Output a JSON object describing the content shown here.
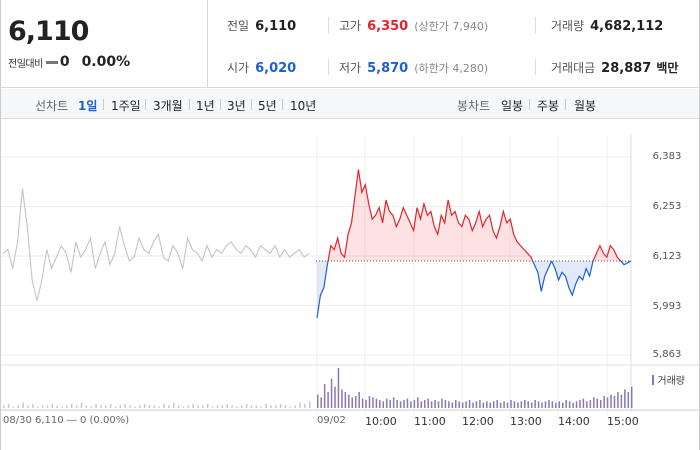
{
  "summary": {
    "current_price": "6,110",
    "change_label": "전일대비",
    "change_value": "0",
    "change_percent": "0.00%",
    "prev_close": {
      "label": "전일",
      "value": "6,110"
    },
    "high": {
      "label": "고가",
      "value": "6,350",
      "limit_label": "(상한가 7,940)"
    },
    "volume": {
      "label": "거래량",
      "value": "4,682,112"
    },
    "open": {
      "label": "시가",
      "value": "6,020"
    },
    "low": {
      "label": "저가",
      "value": "5,870",
      "limit_label": "(하한가 4,280)"
    },
    "trade_amount": {
      "label": "거래대금",
      "value": "28,887",
      "unit": "백만"
    }
  },
  "tabs": {
    "line_chart_label": "선차트",
    "line_items": [
      "1일",
      "1주일",
      "3개월",
      "1년",
      "3년",
      "5년",
      "10년"
    ],
    "active_index": 0,
    "candle_chart_label": "봉차트",
    "candle_items": [
      "일봉",
      "주봉",
      "월봉"
    ]
  },
  "chart_data": {
    "type": "line",
    "y_ticks": [
      "6,383",
      "6,253",
      "6,123",
      "5,993",
      "5,863"
    ],
    "ylim": [
      5863,
      6383
    ],
    "reference_price": 6110,
    "x_labels": [
      "09/02",
      "10:00",
      "11:00",
      "12:00",
      "13:00",
      "14:00",
      "15:00"
    ],
    "prev_day_label": "08/30  6,110 ― 0 (0.00%)",
    "volume_legend": "거래량",
    "prev_day_series": {
      "values": [
        6130,
        6140,
        6090,
        6160,
        6300,
        6200,
        6060,
        6005,
        6060,
        6140,
        6090,
        6120,
        6150,
        6130,
        6080,
        6160,
        6120,
        6140,
        6170,
        6090,
        6130,
        6160,
        6100,
        6130,
        6200,
        6150,
        6110,
        6120,
        6170,
        6140,
        6130,
        6160,
        6180,
        6120,
        6110,
        6150,
        6130,
        6090,
        6170,
        6140,
        6130,
        6110,
        6150,
        6120,
        6140,
        6130,
        6150,
        6160,
        6140,
        6130,
        6150,
        6140,
        6120,
        6150,
        6140,
        6130,
        6150,
        6120,
        6140,
        6120,
        6130,
        6140,
        6120,
        6130
      ]
    },
    "today_series": {
      "time_range": [
        "09:00",
        "15:20"
      ],
      "values": [
        5960,
        6020,
        6040,
        6100,
        6150,
        6140,
        6170,
        6130,
        6120,
        6180,
        6210,
        6280,
        6350,
        6290,
        6310,
        6260,
        6220,
        6230,
        6250,
        6210,
        6270,
        6240,
        6230,
        6200,
        6220,
        6250,
        6230,
        6210,
        6190,
        6250,
        6220,
        6260,
        6230,
        6240,
        6200,
        6180,
        6230,
        6210,
        6270,
        6230,
        6240,
        6210,
        6200,
        6230,
        6220,
        6190,
        6210,
        6240,
        6200,
        6220,
        6230,
        6190,
        6170,
        6200,
        6240,
        6210,
        6220,
        6180,
        6160,
        6150,
        6140,
        6130,
        6120,
        6100,
        6080,
        6030,
        6070,
        6090,
        6110,
        6090,
        6060,
        6080,
        6070,
        6040,
        6020,
        6050,
        6070,
        6060,
        6090,
        6070,
        6110,
        6130,
        6150,
        6130,
        6120,
        6150,
        6140,
        6120,
        6110,
        6100,
        6105,
        6110
      ]
    },
    "volume_series": {
      "prev_day": [
        2,
        3,
        1,
        2,
        4,
        2,
        3,
        1,
        2,
        2,
        3,
        2,
        1,
        2,
        3,
        2,
        4,
        2,
        1,
        3,
        2,
        2,
        3,
        1,
        2,
        3,
        2,
        1,
        2,
        3,
        2,
        2,
        1,
        3,
        2,
        4,
        2,
        1,
        2,
        3,
        2,
        2,
        3,
        1,
        2,
        2,
        3,
        2,
        1,
        2,
        3,
        2,
        2,
        1,
        3,
        2,
        2,
        3,
        2,
        1,
        2,
        4,
        3,
        5
      ],
      "today": [
        10,
        8,
        18,
        12,
        22,
        16,
        30,
        14,
        12,
        10,
        8,
        9,
        12,
        7,
        6,
        9,
        8,
        7,
        6,
        5,
        7,
        6,
        8,
        6,
        5,
        6,
        7,
        5,
        6,
        8,
        5,
        6,
        7,
        5,
        6,
        5,
        7,
        6,
        5,
        4,
        6,
        5,
        4,
        5,
        6,
        4,
        5,
        6,
        4,
        5,
        4,
        5,
        6,
        4,
        5,
        4,
        6,
        5,
        4,
        5,
        6,
        5,
        4,
        6,
        5,
        4,
        5,
        6,
        5,
        4,
        5,
        4,
        6,
        5,
        4,
        5,
        6,
        7,
        5,
        6,
        8,
        7,
        6,
        9,
        8,
        10,
        9,
        12,
        10,
        14,
        12,
        16
      ]
    }
  }
}
